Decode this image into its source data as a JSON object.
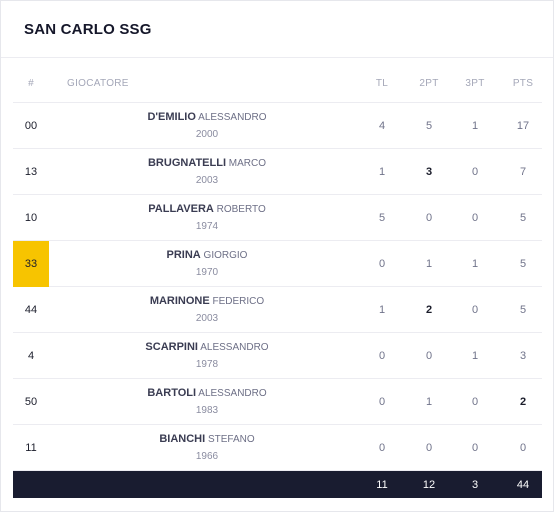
{
  "team": {
    "name": "SAN CARLO SSG"
  },
  "table": {
    "headers": {
      "num": "#",
      "player": "GIOCATORE",
      "tl": "TL",
      "pt2": "2PT",
      "pt3": "3PT",
      "pts": "PTS"
    },
    "rows": [
      {
        "num": "00",
        "surname": "D'EMILIO",
        "first": "ALESSANDRO",
        "year": "2000",
        "tl": "4",
        "pt2": "5",
        "pt3": "1",
        "pts": "17",
        "highlight": false
      },
      {
        "num": "13",
        "surname": "BRUGNATELLI",
        "first": "MARCO",
        "year": "2003",
        "tl": "1",
        "pt2": "3",
        "pt3": "0",
        "pts": "7",
        "highlight": false
      },
      {
        "num": "10",
        "surname": "PALLAVERA",
        "first": "ROBERTO",
        "year": "1974",
        "tl": "5",
        "pt2": "0",
        "pt3": "0",
        "pts": "5",
        "highlight": false
      },
      {
        "num": "33",
        "surname": "PRINA",
        "first": "GIORGIO",
        "year": "1970",
        "tl": "0",
        "pt2": "1",
        "pt3": "1",
        "pts": "5",
        "highlight": true
      },
      {
        "num": "44",
        "surname": "MARINONE",
        "first": "FEDERICO",
        "year": "2003",
        "tl": "1",
        "pt2": "2",
        "pt3": "0",
        "pts": "5",
        "highlight": false
      },
      {
        "num": "4",
        "surname": "SCARPINI",
        "first": "ALESSANDRO",
        "year": "1978",
        "tl": "0",
        "pt2": "0",
        "pt3": "1",
        "pts": "3",
        "highlight": false
      },
      {
        "num": "50",
        "surname": "BARTOLI",
        "first": "ALESSANDRO",
        "year": "1983",
        "tl": "0",
        "pt2": "1",
        "pt3": "0",
        "pts": "2",
        "highlight": false
      },
      {
        "num": "11",
        "surname": "BIANCHI",
        "first": "STEFANO",
        "year": "1966",
        "tl": "0",
        "pt2": "0",
        "pt3": "0",
        "pts": "0",
        "highlight": false
      }
    ],
    "totals": {
      "tl": "11",
      "pt2": "12",
      "pt3": "3",
      "pts": "44"
    }
  },
  "colors": {
    "highlight": "#f7c400",
    "totals_bg": "#191c30"
  }
}
